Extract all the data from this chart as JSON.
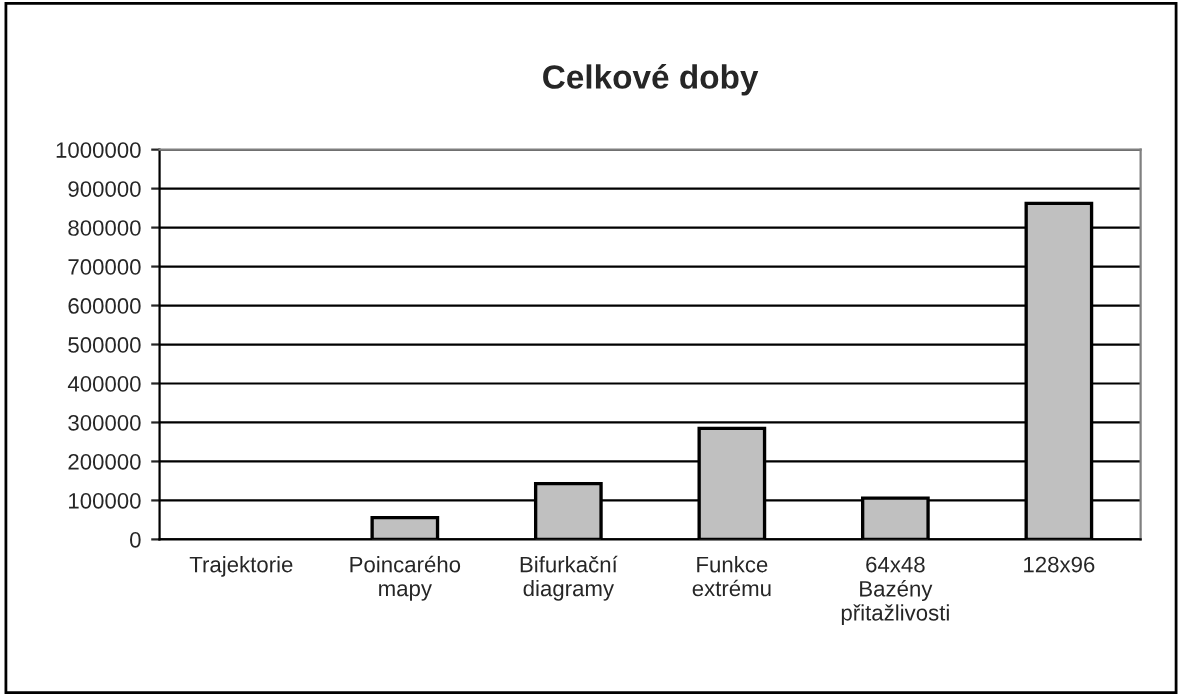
{
  "chart_data": {
    "type": "bar",
    "title": "Celkové doby",
    "categories": [
      "Trajektorie",
      "Poincarého\nmapy",
      "Bifurkační\ndiagramy",
      "Funkce\nextrému",
      "64x48\nBazény\npřitažlivosti",
      "128x96"
    ],
    "values": [
      null,
      56000,
      143000,
      285000,
      106000,
      862000
    ],
    "color": "#c0c0c0",
    "ylim": [
      0,
      1000000
    ],
    "yticks": [
      0,
      100000,
      200000,
      300000,
      400000,
      500000,
      600000,
      700000,
      800000,
      900000,
      1000000
    ],
    "grid": "y"
  }
}
